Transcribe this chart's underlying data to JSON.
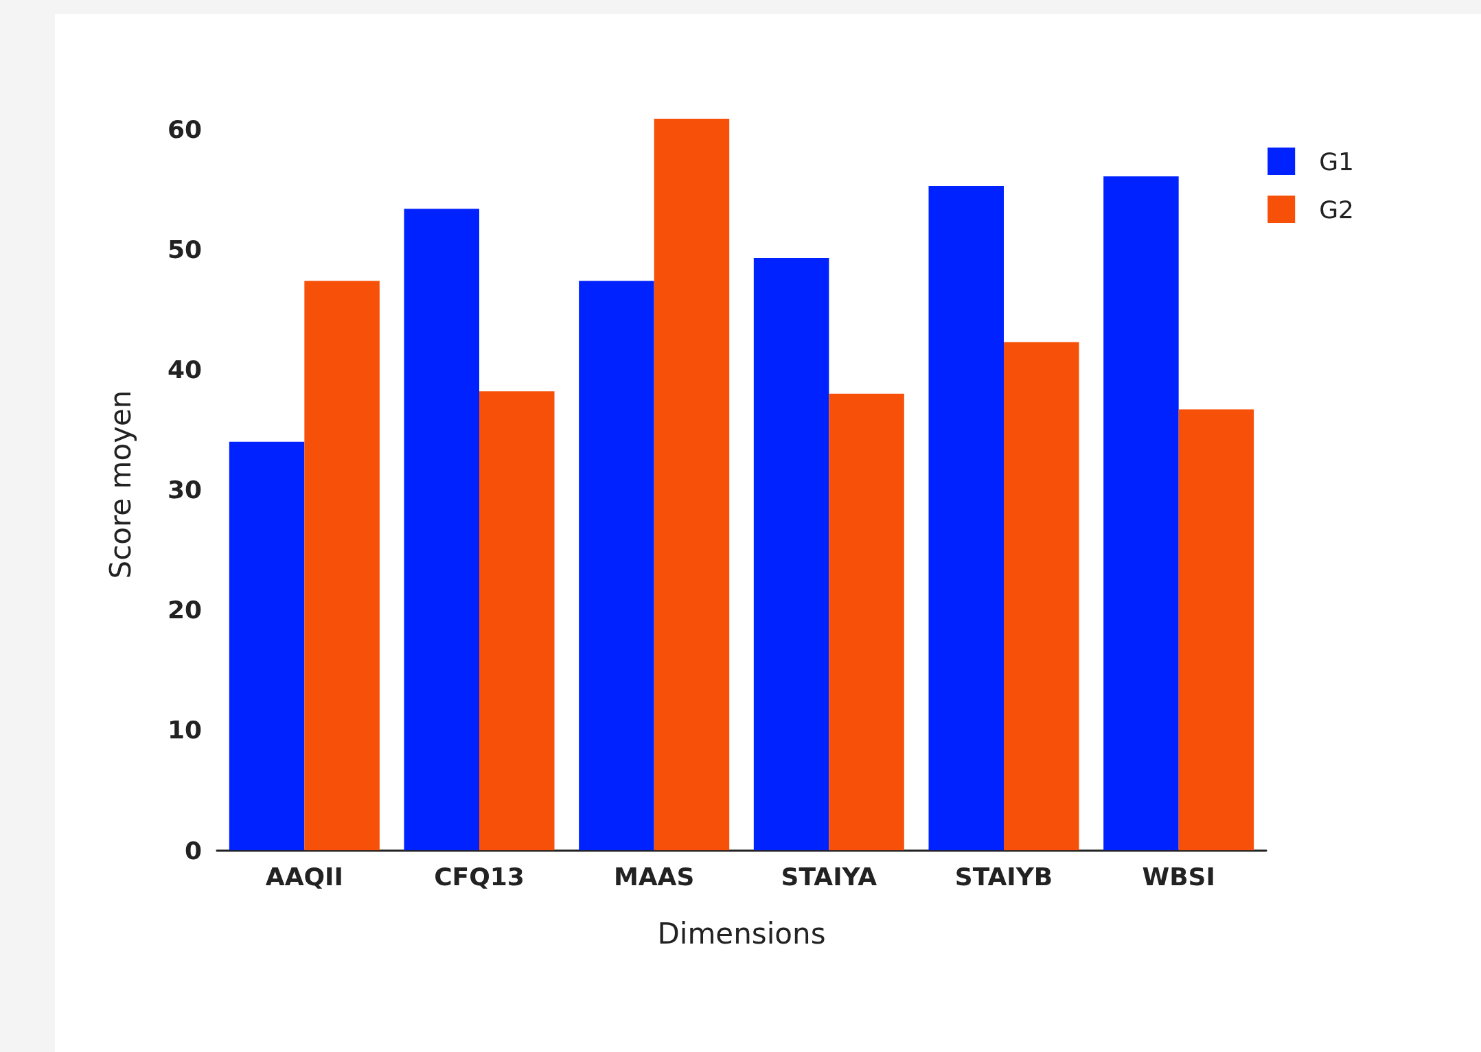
{
  "chart_data": {
    "type": "bar",
    "xlabel": "Dimensions",
    "ylabel": "Score moyen",
    "categories": [
      "AAQII",
      "CFQ13",
      "MAAS",
      "STAIYA",
      "STAIYB",
      "WBSI"
    ],
    "series": [
      {
        "name": "G1",
        "color": "#0022ff",
        "values": [
          34.0,
          53.4,
          47.4,
          49.3,
          55.3,
          56.1
        ]
      },
      {
        "name": "G2",
        "color": "#f75008",
        "values": [
          47.4,
          38.2,
          60.9,
          38.0,
          42.3,
          36.7
        ]
      }
    ],
    "ylim": [
      0,
      60.9
    ],
    "yticks": [
      0,
      10,
      20,
      30,
      40,
      50,
      60
    ],
    "grid": false,
    "legend": "top right"
  }
}
